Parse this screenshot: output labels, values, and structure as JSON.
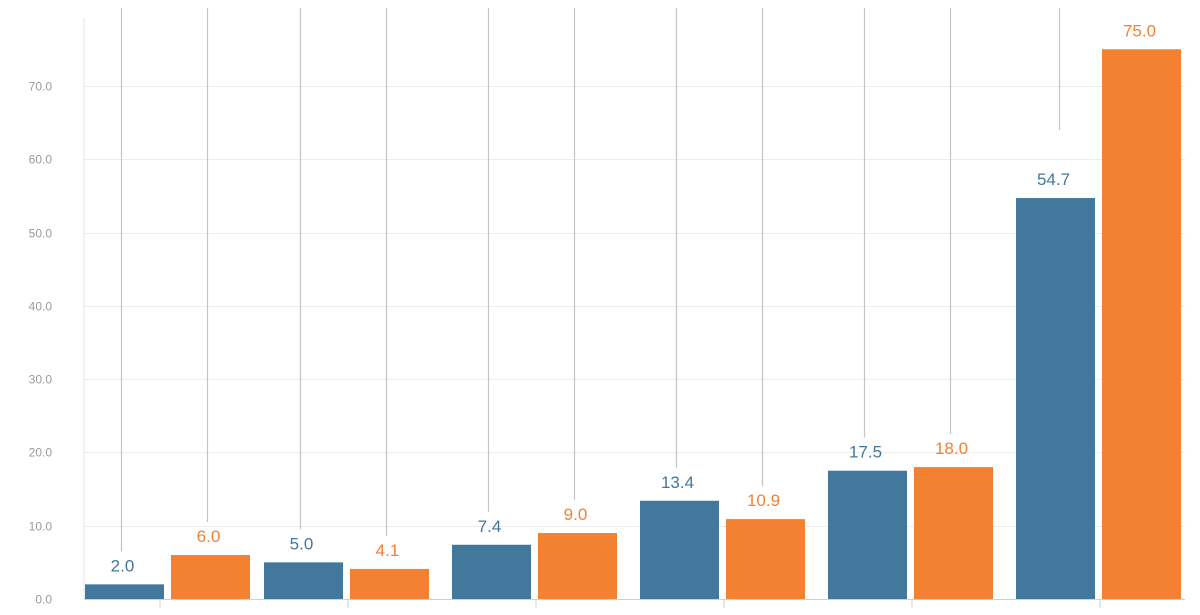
{
  "chart_data": {
    "type": "bar",
    "categories": [
      "",
      "",
      "",
      "",
      "",
      ""
    ],
    "series": [
      {
        "values": [
          2.0,
          5.0,
          7.4,
          13.4,
          17.5,
          54.7
        ],
        "color": "#41789c"
      },
      {
        "values": [
          6.0,
          4.1,
          9.0,
          10.9,
          18.0,
          75.0
        ],
        "color": "#f48131"
      }
    ],
    "value_labels": [
      [
        "2.0",
        "5.0",
        "7.4",
        "13.4",
        "17.5",
        "54.7"
      ],
      [
        "6.0",
        "4.1",
        "9.0",
        "10.9",
        "18.0",
        "75.0"
      ]
    ],
    "ylim": [
      0,
      80
    ],
    "yticks": [
      0,
      10,
      20,
      30,
      40,
      50,
      60,
      70
    ],
    "ytick_labels": [
      "0.0",
      "10.0",
      "20.0",
      "30.0",
      "40.0",
      "50.0",
      "60.0",
      "70.0"
    ],
    "title": "",
    "xlabel": "",
    "ylabel": "",
    "grid": true,
    "legend": "none"
  }
}
